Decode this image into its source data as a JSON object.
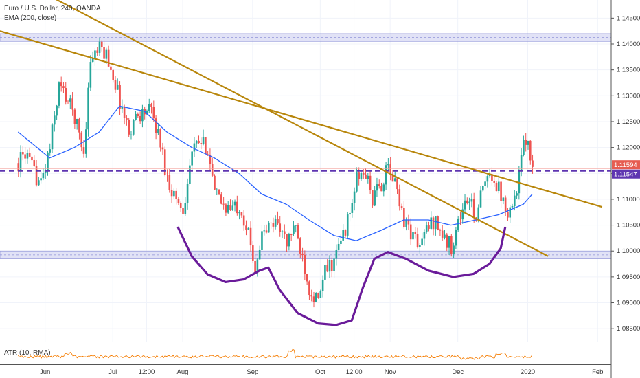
{
  "legend": {
    "symbol": "Euro / U.S. Dollar, 240, OANDA",
    "ema": "EMA (200, close)",
    "atr": "ATR (10, RMA)"
  },
  "colors": {
    "bull": "#26a69a",
    "bear": "#ef5350",
    "ema": "#2962ff",
    "trendline": "#b8860b",
    "curve": "#6a1b9a",
    "zone": "#c9cbef",
    "atr": "#f57c00",
    "tag_red": "#e65c50",
    "tag_purple": "#5e35b1"
  },
  "chart_data": {
    "type": "candlestick",
    "symbol": "EURUSD",
    "timeframe": "240",
    "y_range": [
      1.0825,
      1.1485
    ],
    "y_ticks": [
      "1.14500",
      "1.14000",
      "1.13500",
      "1.13000",
      "1.12500",
      "1.12000",
      "1.11500",
      "1.11000",
      "1.10500",
      "1.10000",
      "1.09500",
      "1.09000",
      "1.08500"
    ],
    "x_ticks": [
      "Jun",
      "Jul",
      "12:00",
      "Aug",
      "Sep",
      "Oct",
      "12:00",
      "Nov",
      "Dec",
      "2020",
      "Feb"
    ],
    "price_tags": [
      {
        "label": "1.11594",
        "value": 1.11594,
        "color": "tag_red"
      },
      {
        "label": "1.11547",
        "value": 1.11547,
        "color": "tag_purple"
      }
    ],
    "close_path": [
      [
        "2019-05-20",
        1.117
      ],
      [
        "2019-05-23",
        1.119
      ],
      [
        "2019-05-27",
        1.115
      ],
      [
        "2019-05-30",
        1.113
      ],
      [
        "2019-06-03",
        1.12
      ],
      [
        "2019-06-07",
        1.132
      ],
      [
        "2019-06-10",
        1.13
      ],
      [
        "2019-06-14",
        1.126
      ],
      [
        "2019-06-18",
        1.119
      ],
      [
        "2019-06-21",
        1.137
      ],
      [
        "2019-06-25",
        1.139
      ],
      [
        "2019-06-28",
        1.138
      ],
      [
        "2019-07-01",
        1.134
      ],
      [
        "2019-07-04",
        1.129
      ],
      [
        "2019-07-08",
        1.123
      ],
      [
        "2019-07-11",
        1.126
      ],
      [
        "2019-07-15",
        1.127
      ],
      [
        "2019-07-18",
        1.127
      ],
      [
        "2019-07-22",
        1.121
      ],
      [
        "2019-07-25",
        1.114
      ],
      [
        "2019-07-29",
        1.11
      ],
      [
        "2019-08-01",
        1.108
      ],
      [
        "2019-08-05",
        1.119
      ],
      [
        "2019-08-08",
        1.121
      ],
      [
        "2019-08-12",
        1.12
      ],
      [
        "2019-08-15",
        1.111
      ],
      [
        "2019-08-19",
        1.109
      ],
      [
        "2019-08-22",
        1.108
      ],
      [
        "2019-08-26",
        1.109
      ],
      [
        "2019-08-29",
        1.105
      ],
      [
        "2019-09-02",
        1.097
      ],
      [
        "2019-09-05",
        1.103
      ],
      [
        "2019-09-09",
        1.105
      ],
      [
        "2019-09-12",
        1.106
      ],
      [
        "2019-09-16",
        1.101
      ],
      [
        "2019-09-19",
        1.105
      ],
      [
        "2019-09-23",
        1.099
      ],
      [
        "2019-09-26",
        1.093
      ],
      [
        "2019-09-30",
        1.09
      ],
      [
        "2019-10-03",
        1.096
      ],
      [
        "2019-10-07",
        1.098
      ],
      [
        "2019-10-10",
        1.102
      ],
      [
        "2019-10-14",
        1.107
      ],
      [
        "2019-10-17",
        1.114
      ],
      [
        "2019-10-21",
        1.115
      ],
      [
        "2019-10-24",
        1.11
      ],
      [
        "2019-10-28",
        1.113
      ],
      [
        "2019-10-31",
        1.116
      ],
      [
        "2019-11-04",
        1.112
      ],
      [
        "2019-11-07",
        1.106
      ],
      [
        "2019-11-11",
        1.103
      ],
      [
        "2019-11-14",
        1.101
      ],
      [
        "2019-11-18",
        1.105
      ],
      [
        "2019-11-21",
        1.106
      ],
      [
        "2019-11-25",
        1.102
      ],
      [
        "2019-11-28",
        1.101
      ],
      [
        "2019-12-02",
        1.107
      ],
      [
        "2019-12-05",
        1.11
      ],
      [
        "2019-12-09",
        1.107
      ],
      [
        "2019-12-12",
        1.112
      ],
      [
        "2019-12-16",
        1.115
      ],
      [
        "2019-12-19",
        1.112
      ],
      [
        "2019-12-23",
        1.108
      ],
      [
        "2019-12-26",
        1.11
      ],
      [
        "2019-12-30",
        1.12
      ],
      [
        "2020-01-01",
        1.122
      ],
      [
        "2020-01-03",
        1.116
      ]
    ],
    "ema_200": [
      [
        "2019-05-20",
        1.123
      ],
      [
        "2019-06-03",
        1.118
      ],
      [
        "2019-06-14",
        1.12
      ],
      [
        "2019-06-25",
        1.123
      ],
      [
        "2019-07-04",
        1.128
      ],
      [
        "2019-07-15",
        1.127
      ],
      [
        "2019-07-25",
        1.123
      ],
      [
        "2019-08-05",
        1.12
      ],
      [
        "2019-08-15",
        1.118
      ],
      [
        "2019-08-26",
        1.115
      ],
      [
        "2019-09-05",
        1.111
      ],
      [
        "2019-09-16",
        1.109
      ],
      [
        "2019-09-26",
        1.106
      ],
      [
        "2019-10-07",
        1.103
      ],
      [
        "2019-10-17",
        1.102
      ],
      [
        "2019-10-28",
        1.104
      ],
      [
        "2019-11-07",
        1.106
      ],
      [
        "2019-11-18",
        1.106
      ],
      [
        "2019-11-28",
        1.105
      ],
      [
        "2019-12-09",
        1.106
      ],
      [
        "2019-12-19",
        1.107
      ],
      [
        "2019-12-30",
        1.109
      ],
      [
        "2020-01-03",
        1.111
      ]
    ],
    "horizontal_zones": [
      {
        "from": 1.1405,
        "to": 1.142
      },
      {
        "from": 1.0985,
        "to": 1.1
      }
    ],
    "horizontal_lines": [
      1.11594,
      1.11547
    ],
    "trendlines": [
      {
        "from": [
          "2019-05-22",
          1.152
        ],
        "to": [
          "2020-01-10",
          1.099
        ]
      },
      {
        "from": [
          "2019-05-12",
          1.1425
        ],
        "to": [
          "2020-02-03",
          1.1085
        ]
      }
    ],
    "atr_range": [
      0.001,
      0.003
    ]
  }
}
